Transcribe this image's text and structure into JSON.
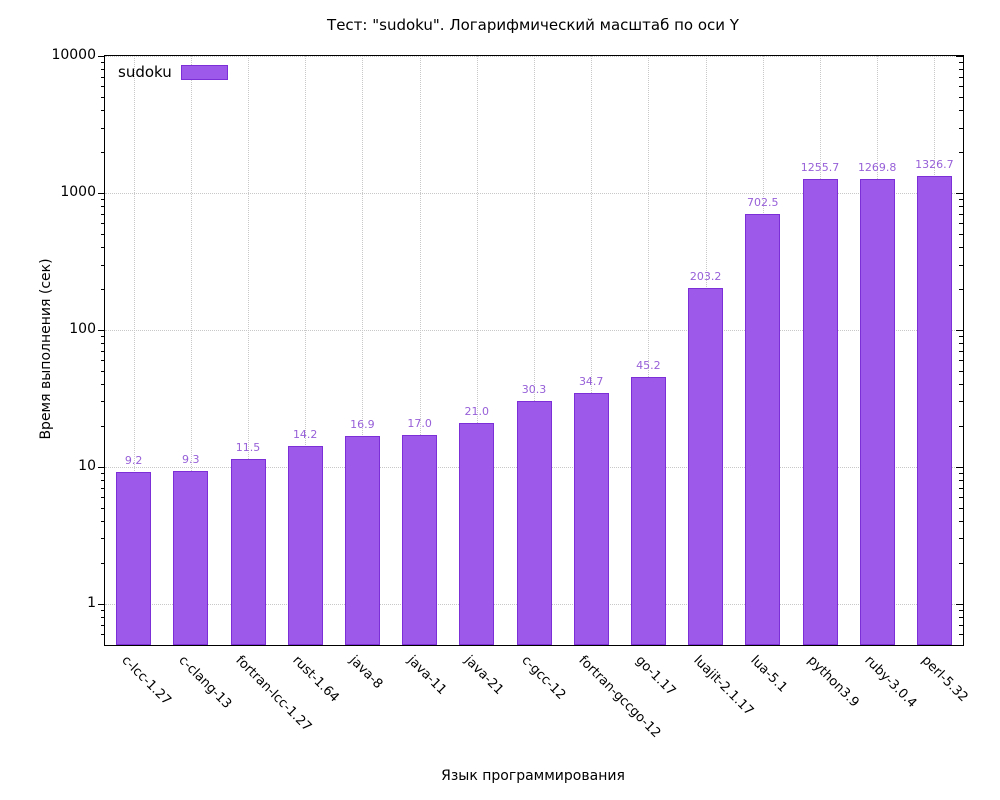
{
  "title": "Тест: \"sudoku\". Логарифмический масштаб по оси Y",
  "legend": {
    "label": "sudoku"
  },
  "axes": {
    "y_label": "Время выполнения (сек)",
    "x_label": "Язык программирования"
  },
  "chart_data": {
    "type": "bar",
    "title": "Тест: \"sudoku\". Логарифмический масштаб по оси Y",
    "xlabel": "Язык программирования",
    "ylabel": "Время выполнения (сек)",
    "yscale": "log",
    "ylim": [
      0.5,
      10000
    ],
    "y_major_ticks": [
      1,
      10,
      100,
      1000,
      10000
    ],
    "y_tick_labels": [
      "1",
      "10",
      "100",
      "1000",
      "10000"
    ],
    "grid": true,
    "legend_position": "top-left",
    "series_name": "sudoku",
    "categories": [
      "c-lcc-1.27",
      "c-clang-13",
      "fortran-lcc-1.27",
      "rust-1.64",
      "java-8",
      "java-11",
      "java-21",
      "c-gcc-12",
      "fortran-gccgo-12",
      "go-1.17",
      "luajit-2.1.17",
      "lua-5.1",
      "python3.9",
      "ruby-3.0.4",
      "perl-5.32"
    ],
    "values": [
      9.2,
      9.3,
      11.5,
      14.2,
      16.9,
      17.0,
      21.0,
      30.3,
      34.7,
      45.2,
      203.2,
      702.5,
      1255.7,
      1269.8,
      1326.7
    ],
    "value_labels": [
      "9.2",
      "9.3",
      "11.5",
      "14.2",
      "16.9",
      "17.0",
      "21.0",
      "30.3",
      "34.7",
      "45.2",
      "203.2",
      "702.5",
      "1255.7",
      "1269.8",
      "1326.7"
    ],
    "colors": {
      "bar_fill": "#9d59ea",
      "bar_border": "#7c2fd6",
      "value_label": "#9760d8",
      "grid": "#c8c8c8",
      "axis": "#000000",
      "background": "#ffffff"
    }
  }
}
